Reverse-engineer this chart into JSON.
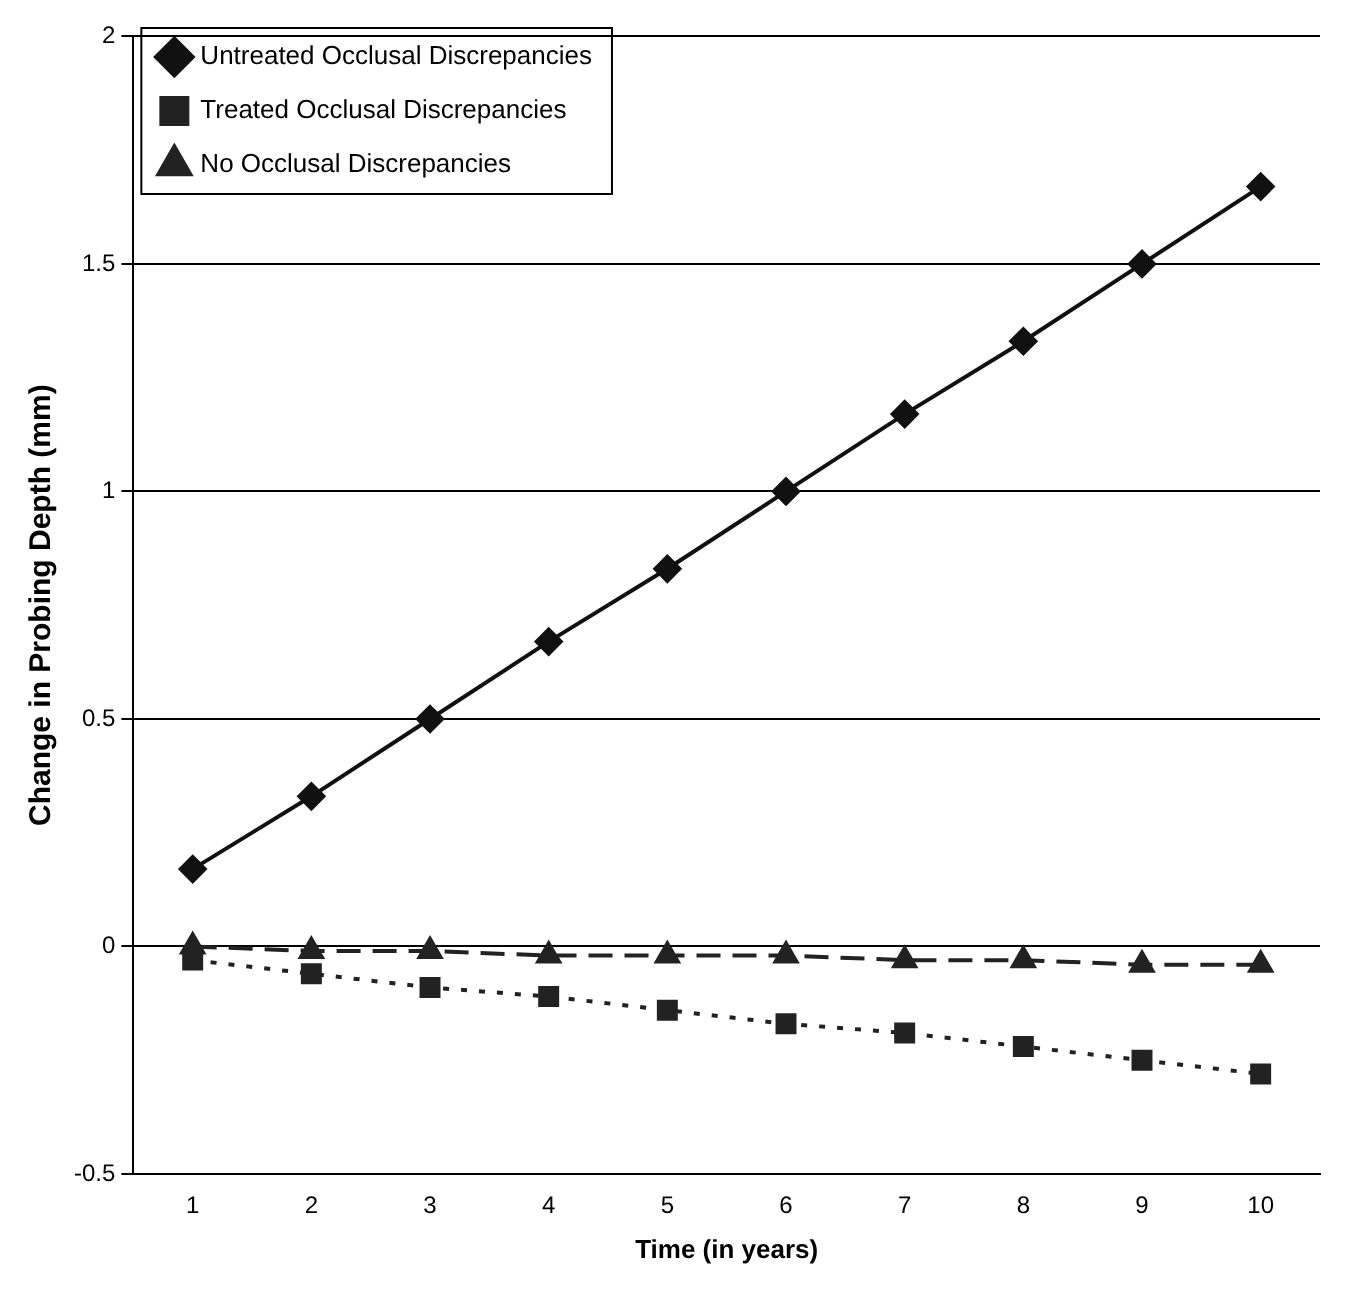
{
  "chart_data": {
    "type": "line",
    "xlabel": "Time (in years)",
    "ylabel": "Change in Probing Depth (mm)",
    "categories": [
      "1",
      "2",
      "3",
      "4",
      "5",
      "6",
      "7",
      "8",
      "9",
      "10"
    ],
    "series": [
      {
        "name": "Untreated Occlusal Discrepancies",
        "color": "#111111",
        "marker": "diamond",
        "line_style": "solid",
        "values": [
          0.17,
          0.33,
          0.5,
          0.67,
          0.83,
          1.0,
          1.17,
          1.33,
          1.5,
          1.67
        ]
      },
      {
        "name": "Treated Occlusal Discrepancies",
        "color": "#222222",
        "marker": "square",
        "line_style": "dotted",
        "values": [
          -0.03,
          -0.06,
          -0.09,
          -0.11,
          -0.14,
          -0.17,
          -0.19,
          -0.22,
          -0.25,
          -0.28
        ]
      },
      {
        "name": "No Occlusal Discrepancies",
        "color": "#222222",
        "marker": "triangle",
        "line_style": "dashed",
        "values": [
          0.0,
          -0.01,
          -0.01,
          -0.02,
          -0.02,
          -0.02,
          -0.03,
          -0.03,
          -0.04,
          -0.04
        ]
      }
    ],
    "ylim": [
      -0.5,
      2
    ],
    "yticks": [
      -0.5,
      0,
      0.5,
      1,
      1.5,
      2
    ],
    "grid": "y",
    "legend": "top left"
  }
}
